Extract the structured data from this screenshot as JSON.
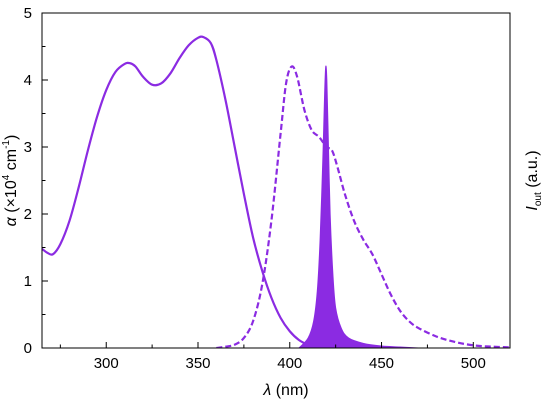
{
  "chart_data": {
    "type": "line",
    "title": "",
    "grid": false,
    "legend": "none",
    "color": "#8B2BE2",
    "x_axis": {
      "range": [
        265,
        520
      ],
      "ticks": [
        300,
        350,
        400,
        450,
        500
      ],
      "tick_labels": [
        "300",
        "350",
        "400",
        "450",
        "500"
      ],
      "label": {
        "italic": "λ",
        "rest": " (nm)"
      }
    },
    "y_axis_left": {
      "range": [
        0,
        5
      ],
      "ticks": [
        0,
        1,
        2,
        3,
        4,
        5
      ],
      "tick_labels": [
        "0",
        "1",
        "2",
        "3",
        "4",
        "5"
      ],
      "label": {
        "italic": "α",
        "prefix": " (×10",
        "sup": "4",
        "unit": " cm",
        "sup2": "-1",
        "suffix": ")"
      }
    },
    "y_axis_right": {
      "label": {
        "italic": "I",
        "sub": "out",
        "rest": " (a.u.)"
      }
    },
    "series": [
      {
        "style": "solid",
        "fill": false,
        "x": [
          265,
          268,
          271,
          275,
          280,
          285,
          290,
          295,
          300,
          305,
          310,
          313,
          316,
          320,
          325,
          330,
          335,
          340,
          345,
          350,
          353,
          357,
          360,
          365,
          370,
          375,
          380,
          385,
          390,
          395,
          400,
          405,
          410,
          415,
          420,
          425
        ],
        "y": [
          1.48,
          1.42,
          1.4,
          1.55,
          1.9,
          2.4,
          2.95,
          3.45,
          3.85,
          4.12,
          4.24,
          4.25,
          4.2,
          4.05,
          3.93,
          3.95,
          4.1,
          4.33,
          4.52,
          4.63,
          4.64,
          4.55,
          4.3,
          3.7,
          3.0,
          2.3,
          1.65,
          1.15,
          0.75,
          0.45,
          0.25,
          0.12,
          0.05,
          0.02,
          0.01,
          0.0
        ]
      },
      {
        "style": "dashed",
        "fill": false,
        "x": [
          360,
          365,
          370,
          375,
          380,
          385,
          390,
          395,
          398,
          401,
          404,
          408,
          412,
          416,
          420,
          423,
          426,
          430,
          435,
          440,
          445,
          450,
          455,
          460,
          465,
          470,
          480,
          490,
          500,
          510,
          520
        ],
        "y": [
          0.0,
          0.02,
          0.05,
          0.15,
          0.4,
          0.95,
          1.9,
          3.2,
          3.95,
          4.2,
          4.05,
          3.55,
          3.25,
          3.15,
          3.0,
          2.95,
          2.7,
          2.3,
          1.9,
          1.62,
          1.4,
          1.1,
          0.8,
          0.56,
          0.4,
          0.3,
          0.17,
          0.09,
          0.04,
          0.02,
          0.01
        ]
      },
      {
        "style": "filled",
        "fill": true,
        "x": [
          405,
          410,
          413,
          415,
          416.5,
          418,
          419,
          419.6,
          420.2,
          421,
          422,
          423.5,
          425,
          428,
          432,
          440,
          450,
          460,
          470
        ],
        "y": [
          0.0,
          0.15,
          0.4,
          0.85,
          1.6,
          2.8,
          3.8,
          4.2,
          4.0,
          3.1,
          2.0,
          1.1,
          0.6,
          0.3,
          0.15,
          0.07,
          0.03,
          0.015,
          0.0
        ]
      }
    ]
  }
}
